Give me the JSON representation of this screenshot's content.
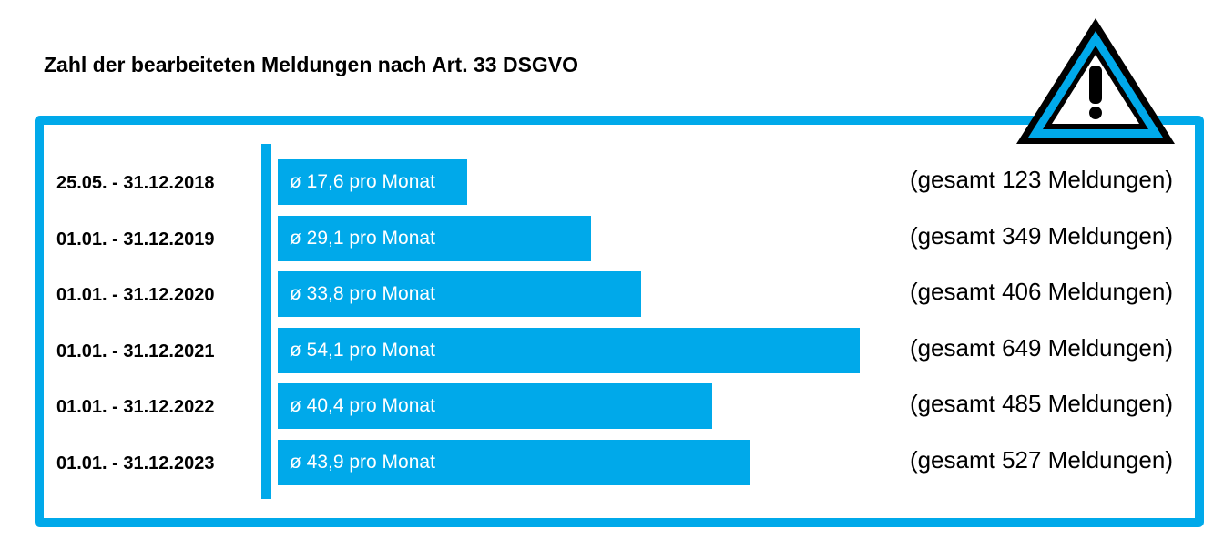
{
  "title": "Zahl der bearbeiteten Meldungen nach Art. 33 DSGVO",
  "colors": {
    "accent": "#00a9ea",
    "text": "#000000",
    "bar_text": "#ffffff"
  },
  "icon": "warning-triangle-icon",
  "chart_data": {
    "type": "bar",
    "orientation": "horizontal",
    "title": "Zahl der bearbeiteten Meldungen nach Art. 33 DSGVO",
    "categories": [
      "25.05. - 31.12.2018",
      "01.01. - 31.12.2019",
      "01.01. - 31.12.2020",
      "01.01. - 31.12.2021",
      "01.01. - 31.12.2022",
      "01.01. - 31.12.2023"
    ],
    "values": [
      17.6,
      29.1,
      33.8,
      54.1,
      40.4,
      43.9
    ],
    "bar_labels": [
      "ø 17,6 pro Monat",
      "ø 29,1 pro Monat",
      "ø 33,8 pro Monat",
      "ø 54,1 pro Monat",
      "ø 40,4 pro Monat",
      "ø 43,9 pro Monat"
    ],
    "totals": [
      123,
      349,
      406,
      649,
      485,
      527
    ],
    "total_labels": [
      "(gesamt 123 Meldungen)",
      "(gesamt 349 Meldungen)",
      "(gesamt 406 Meldungen)",
      "(gesamt 649 Meldungen)",
      "(gesamt 485 Meldungen)",
      "(gesamt 527 Meldungen)"
    ],
    "xlim": [
      0,
      54.1
    ],
    "grid": false,
    "legend": "none"
  }
}
